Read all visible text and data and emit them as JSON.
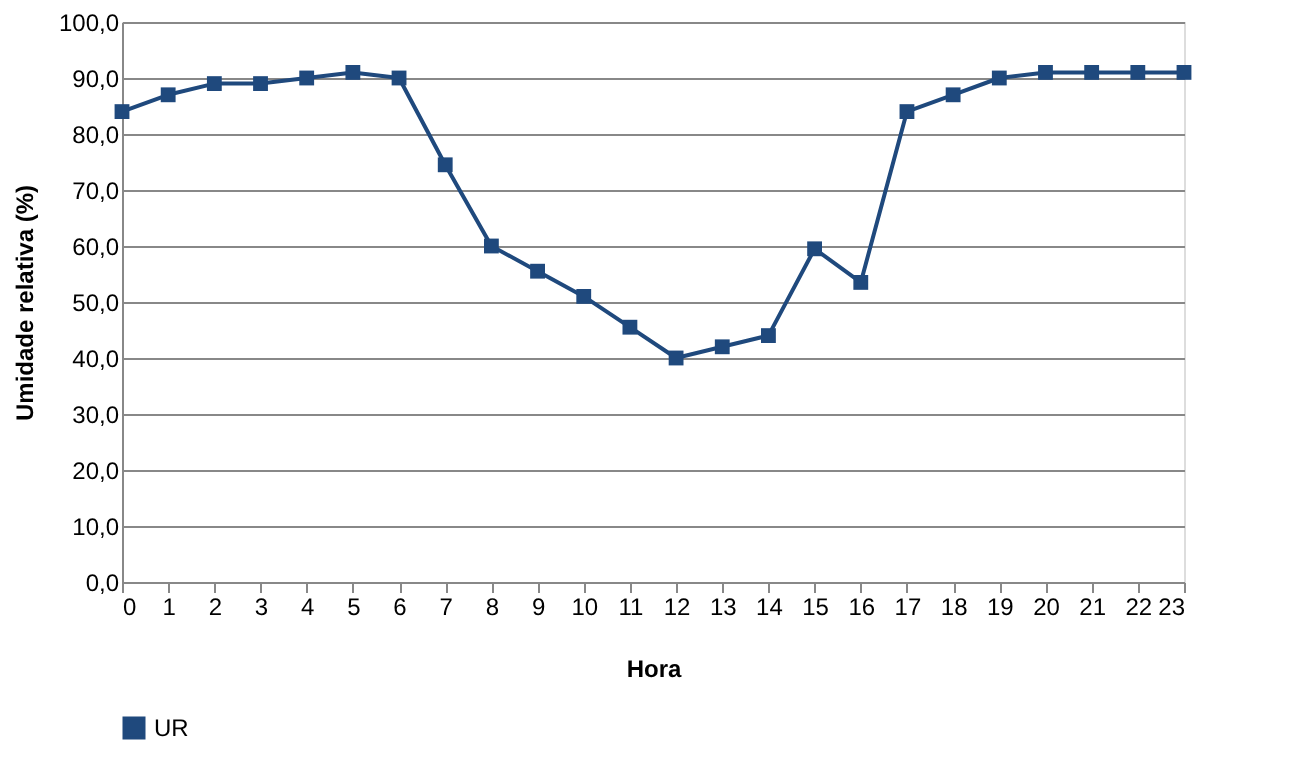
{
  "chart_data": {
    "type": "line",
    "xlabel": "Hora",
    "ylabel": "Umidade relativa (%)",
    "x": [
      0,
      1,
      2,
      3,
      4,
      5,
      6,
      7,
      8,
      9,
      10,
      11,
      12,
      13,
      14,
      15,
      16,
      17,
      18,
      19,
      20,
      21,
      22,
      23
    ],
    "series": [
      {
        "name": "UR",
        "color": "#1f497d",
        "values": [
          84,
          87,
          89,
          89,
          90,
          91,
          90,
          74.5,
          60,
          55.5,
          51,
          45.5,
          40,
          42,
          44,
          59.5,
          53.5,
          84,
          87,
          90,
          91,
          91,
          91,
          91
        ]
      }
    ],
    "xlim": [
      0,
      23
    ],
    "xticks": [
      0,
      1,
      2,
      3,
      4,
      5,
      6,
      7,
      8,
      9,
      10,
      11,
      12,
      13,
      14,
      15,
      16,
      17,
      18,
      19,
      20,
      21,
      22,
      23
    ],
    "ylim": [
      0,
      100
    ],
    "yticks": [
      {
        "value": 0,
        "label": "0,0"
      },
      {
        "value": 10,
        "label": "10,0"
      },
      {
        "value": 20,
        "label": "20,0"
      },
      {
        "value": 30,
        "label": "30,0"
      },
      {
        "value": 40,
        "label": "40,0"
      },
      {
        "value": 50,
        "label": "50,0"
      },
      {
        "value": 60,
        "label": "60,0"
      },
      {
        "value": 70,
        "label": "70,0"
      },
      {
        "value": 80,
        "label": "80,0"
      },
      {
        "value": 90,
        "label": "90,0"
      },
      {
        "value": 100,
        "label": "100,0"
      }
    ],
    "grid": "y",
    "legend": "bottom",
    "marker": "square",
    "line_style": "solid"
  }
}
